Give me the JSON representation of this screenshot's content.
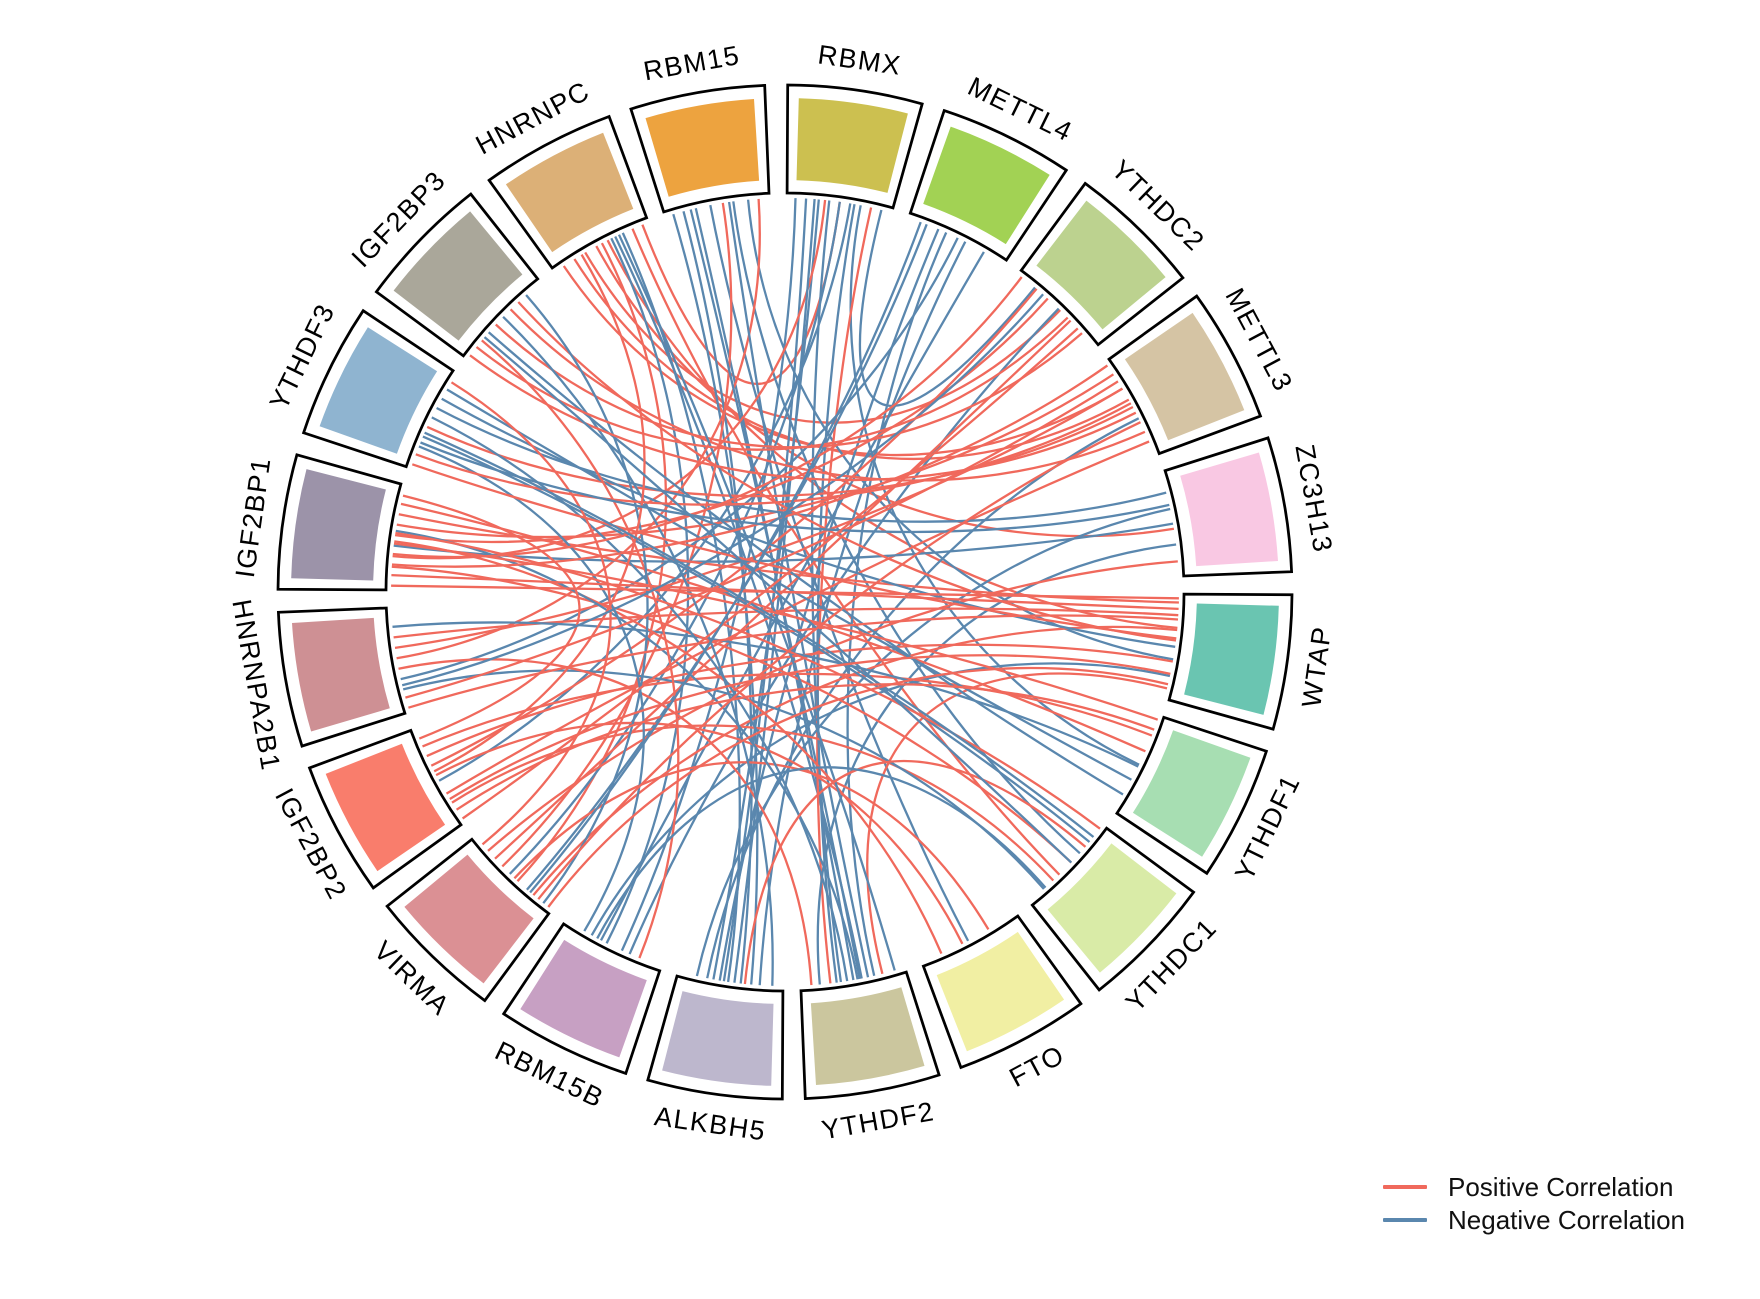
{
  "legend": {
    "items": [
      {
        "label": "Positive Correlation",
        "color": "#F0695C"
      },
      {
        "label": "Negative Correlation",
        "color": "#5A87AE"
      }
    ]
  },
  "chart_data": {
    "type": "chord",
    "title": "",
    "description": "Circular chord diagram of correlations among m6A regulator genes",
    "sectors": [
      {
        "name": "RBM15",
        "color": "#EDA33F"
      },
      {
        "name": "RBMX",
        "color": "#CCC050"
      },
      {
        "name": "METTL4",
        "color": "#A2D254"
      },
      {
        "name": "YTHDC2",
        "color": "#BCD28F"
      },
      {
        "name": "METTL3",
        "color": "#D5C4A4"
      },
      {
        "name": "ZC3H13",
        "color": "#F9C8E3"
      },
      {
        "name": "WTAP",
        "color": "#6AC5B1"
      },
      {
        "name": "YTHDF1",
        "color": "#A7DEB2"
      },
      {
        "name": "YTHDC1",
        "color": "#D9EBA7"
      },
      {
        "name": "FTO",
        "color": "#F1EFA3"
      },
      {
        "name": "YTHDF2",
        "color": "#CBC69E"
      },
      {
        "name": "ALKBH5",
        "color": "#BDB7CD"
      },
      {
        "name": "RBM15B",
        "color": "#C7A0C3"
      },
      {
        "name": "VIRMA",
        "color": "#DB9094"
      },
      {
        "name": "IGF2BP2",
        "color": "#F97D6C"
      },
      {
        "name": "HNRNPA2B1",
        "color": "#CE9094"
      },
      {
        "name": "IGF2BP1",
        "color": "#9C93A9"
      },
      {
        "name": "YTHDF3",
        "color": "#8FB4D0"
      },
      {
        "name": "IGF2BP3",
        "color": "#AAA79A"
      },
      {
        "name": "HNRNPC",
        "color": "#DCB077"
      }
    ],
    "link_colors": {
      "positive": "#F0695C",
      "negative": "#5A87AE"
    },
    "links": [
      [
        19,
        0.1,
        4,
        0.3,
        1
      ],
      [
        19,
        0.22,
        4,
        0.42,
        1
      ],
      [
        19,
        0.34,
        3,
        0.52,
        1
      ],
      [
        19,
        0.46,
        5,
        0.55,
        1
      ],
      [
        19,
        0.58,
        6,
        0.32,
        1
      ],
      [
        19,
        0.66,
        10,
        0.42,
        -1
      ],
      [
        19,
        0.74,
        11,
        0.52,
        -1
      ],
      [
        19,
        0.84,
        8,
        0.62,
        1
      ],
      [
        19,
        0.52,
        13,
        0.42,
        1
      ],
      [
        19,
        0.62,
        12,
        0.56,
        -1
      ],
      [
        19,
        0.94,
        1,
        0.5,
        1
      ],
      [
        0,
        0.08,
        11,
        0.3,
        -1
      ],
      [
        0,
        0.18,
        11,
        0.4,
        -1
      ],
      [
        0,
        0.3,
        10,
        0.5,
        -1
      ],
      [
        0,
        0.44,
        9,
        0.52,
        -1
      ],
      [
        0,
        0.56,
        13,
        0.62,
        1
      ],
      [
        0,
        0.66,
        8,
        0.34,
        -1
      ],
      [
        0,
        0.8,
        6,
        0.62,
        -1
      ],
      [
        0,
        0.9,
        15,
        0.52,
        1
      ],
      [
        0,
        0.25,
        10,
        0.44,
        -1
      ],
      [
        0,
        0.62,
        10,
        0.36,
        -1
      ],
      [
        1,
        0.08,
        12,
        0.4,
        -1
      ],
      [
        1,
        0.18,
        11,
        0.56,
        -1
      ],
      [
        1,
        0.3,
        11,
        0.66,
        -1
      ],
      [
        1,
        0.4,
        10,
        0.62,
        -1
      ],
      [
        1,
        0.5,
        13,
        0.52,
        -1
      ],
      [
        1,
        0.6,
        14,
        0.46,
        -1
      ],
      [
        1,
        0.7,
        7,
        0.5,
        -1
      ],
      [
        1,
        0.8,
        10,
        0.72,
        1
      ],
      [
        1,
        0.36,
        16,
        0.32,
        1
      ],
      [
        1,
        0.26,
        11,
        0.46,
        -1
      ],
      [
        1,
        0.64,
        10,
        0.66,
        -1
      ],
      [
        1,
        0.9,
        3,
        0.2,
        -1
      ],
      [
        2,
        0.18,
        13,
        0.3,
        -1
      ],
      [
        2,
        0.38,
        10,
        0.3,
        -1
      ],
      [
        2,
        0.58,
        11,
        0.22,
        -1
      ],
      [
        2,
        0.78,
        12,
        0.62,
        -1
      ],
      [
        2,
        0.5,
        15,
        0.32,
        -1
      ],
      [
        2,
        0.3,
        11,
        0.6,
        -1
      ],
      [
        3,
        0.22,
        14,
        0.62,
        1
      ],
      [
        3,
        0.36,
        16,
        0.52,
        1
      ],
      [
        3,
        0.5,
        12,
        0.32,
        -1
      ],
      [
        3,
        0.66,
        13,
        0.72,
        1
      ],
      [
        3,
        0.82,
        18,
        0.42,
        1
      ],
      [
        4,
        0.14,
        16,
        0.62,
        1
      ],
      [
        4,
        0.3,
        15,
        0.62,
        1
      ],
      [
        4,
        0.5,
        17,
        0.42,
        1
      ],
      [
        4,
        0.62,
        11,
        0.72,
        -1
      ],
      [
        4,
        0.76,
        18,
        0.62,
        1
      ],
      [
        4,
        0.86,
        14,
        0.32,
        1
      ],
      [
        5,
        0.2,
        17,
        0.62,
        -1
      ],
      [
        5,
        0.36,
        11,
        0.82,
        -1
      ],
      [
        5,
        0.5,
        16,
        0.42,
        -1
      ],
      [
        5,
        0.7,
        10,
        0.82,
        -1
      ],
      [
        5,
        0.86,
        13,
        0.82,
        1
      ],
      [
        6,
        0.08,
        16,
        0.72,
        1
      ],
      [
        6,
        0.2,
        15,
        0.72,
        1
      ],
      [
        6,
        0.34,
        13,
        0.22,
        1
      ],
      [
        6,
        0.5,
        17,
        0.72,
        -1
      ],
      [
        6,
        0.64,
        14,
        0.72,
        1
      ],
      [
        6,
        0.78,
        12,
        0.72,
        -1
      ],
      [
        6,
        0.9,
        10,
        0.22,
        1
      ],
      [
        6,
        0.44,
        18,
        0.72,
        1
      ],
      [
        7,
        0.2,
        14,
        0.82,
        1
      ],
      [
        7,
        0.36,
        16,
        0.82,
        1
      ],
      [
        7,
        0.52,
        15,
        0.82,
        -1
      ],
      [
        7,
        0.66,
        17,
        0.82,
        -1
      ],
      [
        7,
        0.82,
        18,
        0.32,
        -1
      ],
      [
        8,
        0.2,
        17,
        0.32,
        -1
      ],
      [
        8,
        0.46,
        16,
        0.22,
        1
      ],
      [
        8,
        0.7,
        14,
        0.22,
        1
      ],
      [
        8,
        0.82,
        15,
        0.22,
        -1
      ],
      [
        9,
        0.3,
        13,
        0.46,
        1
      ],
      [
        9,
        0.58,
        14,
        0.52,
        1
      ],
      [
        9,
        0.8,
        16,
        0.46,
        1
      ],
      [
        10,
        0.46,
        16,
        0.56,
        -1
      ],
      [
        10,
        0.56,
        17,
        0.52,
        -1
      ],
      [
        10,
        0.9,
        15,
        0.42,
        1
      ],
      [
        10,
        0.1,
        19,
        0.7,
        -1
      ],
      [
        11,
        0.1,
        18,
        0.52,
        -1
      ],
      [
        11,
        0.36,
        8,
        0.26,
        1
      ],
      [
        12,
        0.22,
        18,
        0.22,
        1
      ],
      [
        12,
        0.8,
        17,
        0.22,
        -1
      ],
      [
        12,
        0.66,
        8,
        0.8,
        -1
      ],
      [
        13,
        0.9,
        17,
        0.9,
        1
      ],
      [
        13,
        0.1,
        18,
        0.82,
        -1
      ],
      [
        14,
        0.9,
        16,
        0.9,
        1
      ],
      [
        14,
        0.56,
        19,
        0.3,
        1
      ],
      [
        16,
        0.04,
        6,
        0.04,
        1
      ],
      [
        16,
        0.14,
        6,
        0.14,
        1
      ],
      [
        16,
        0.24,
        4,
        0.04,
        1
      ],
      [
        16,
        0.34,
        3,
        0.04,
        1
      ],
      [
        16,
        0.44,
        7,
        0.04,
        1
      ],
      [
        16,
        0.54,
        8,
        0.04,
        1
      ],
      [
        15,
        0.04,
        6,
        0.24,
        1
      ],
      [
        15,
        0.14,
        4,
        0.22,
        1
      ],
      [
        15,
        0.26,
        3,
        0.3,
        -1
      ],
      [
        17,
        0.04,
        6,
        0.42,
        1
      ],
      [
        17,
        0.14,
        4,
        0.46,
        1
      ],
      [
        17,
        0.26,
        5,
        0.32,
        -1
      ],
      [
        17,
        0.36,
        8,
        0.14,
        -1
      ],
      [
        18,
        0.04,
        4,
        0.56,
        1
      ],
      [
        18,
        0.14,
        3,
        0.62,
        1
      ],
      [
        18,
        0.26,
        8,
        0.46,
        -1
      ],
      [
        14,
        0.04,
        3,
        0.76,
        1
      ],
      [
        14,
        0.14,
        7,
        0.14,
        1
      ],
      [
        14,
        0.26,
        6,
        0.76,
        1
      ],
      [
        13,
        0.04,
        6,
        0.86,
        1
      ],
      [
        13,
        0.16,
        4,
        0.66,
        1
      ],
      [
        13,
        0.26,
        2,
        0.12,
        -1
      ]
    ],
    "layout": {
      "direction": "clockwise",
      "start_angle_deg": -100,
      "sector_step_deg": 18,
      "sector_span_deg": 15.4,
      "legend_position": "bottom-right",
      "grid": false
    }
  }
}
